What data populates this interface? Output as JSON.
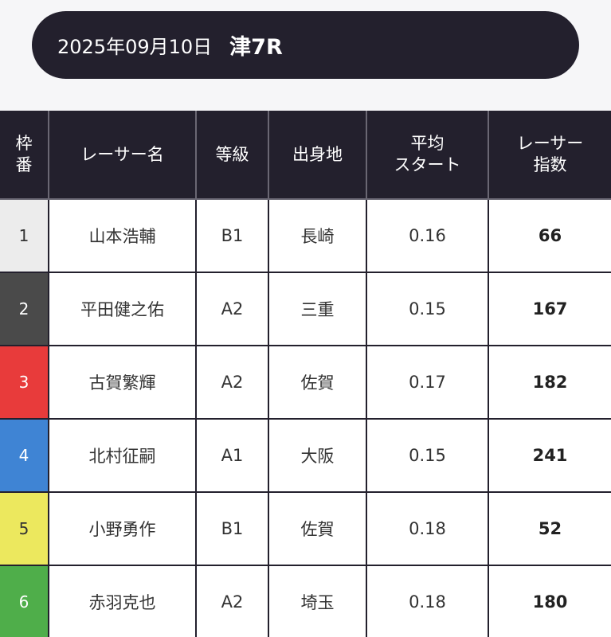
{
  "header": {
    "date": "2025年09月10日",
    "race": "津7R"
  },
  "table": {
    "columns": {
      "waku": [
        "枠",
        "番"
      ],
      "racer_name": [
        "レーサー名"
      ],
      "grade": [
        "等級"
      ],
      "hometown": [
        "出身地"
      ],
      "avg_start": [
        "平均",
        "スタート"
      ],
      "racer_index": [
        "レーサー",
        "指数"
      ]
    },
    "rows": [
      {
        "waku": "1",
        "name": "山本浩輔",
        "grade": "B1",
        "hometown": "長崎",
        "avg_start": "0.16",
        "index": "66",
        "waku_color": "#ececec",
        "waku_text": "#333333"
      },
      {
        "waku": "2",
        "name": "平田健之佑",
        "grade": "A2",
        "hometown": "三重",
        "avg_start": "0.15",
        "index": "167",
        "waku_color": "#4a4a4a",
        "waku_text": "#ffffff"
      },
      {
        "waku": "3",
        "name": "古賀繁輝",
        "grade": "A2",
        "hometown": "佐賀",
        "avg_start": "0.17",
        "index": "182",
        "waku_color": "#e83b3b",
        "waku_text": "#ffffff"
      },
      {
        "waku": "4",
        "name": "北村征嗣",
        "grade": "A1",
        "hometown": "大阪",
        "avg_start": "0.15",
        "index": "241",
        "waku_color": "#3f84d4",
        "waku_text": "#ffffff"
      },
      {
        "waku": "5",
        "name": "小野勇作",
        "grade": "B1",
        "hometown": "佐賀",
        "avg_start": "0.18",
        "index": "52",
        "waku_color": "#ece85e",
        "waku_text": "#333333"
      },
      {
        "waku": "6",
        "name": "赤羽克也",
        "grade": "A2",
        "hometown": "埼玉",
        "avg_start": "0.18",
        "index": "180",
        "waku_color": "#4fae4a",
        "waku_text": "#ffffff"
      }
    ]
  }
}
